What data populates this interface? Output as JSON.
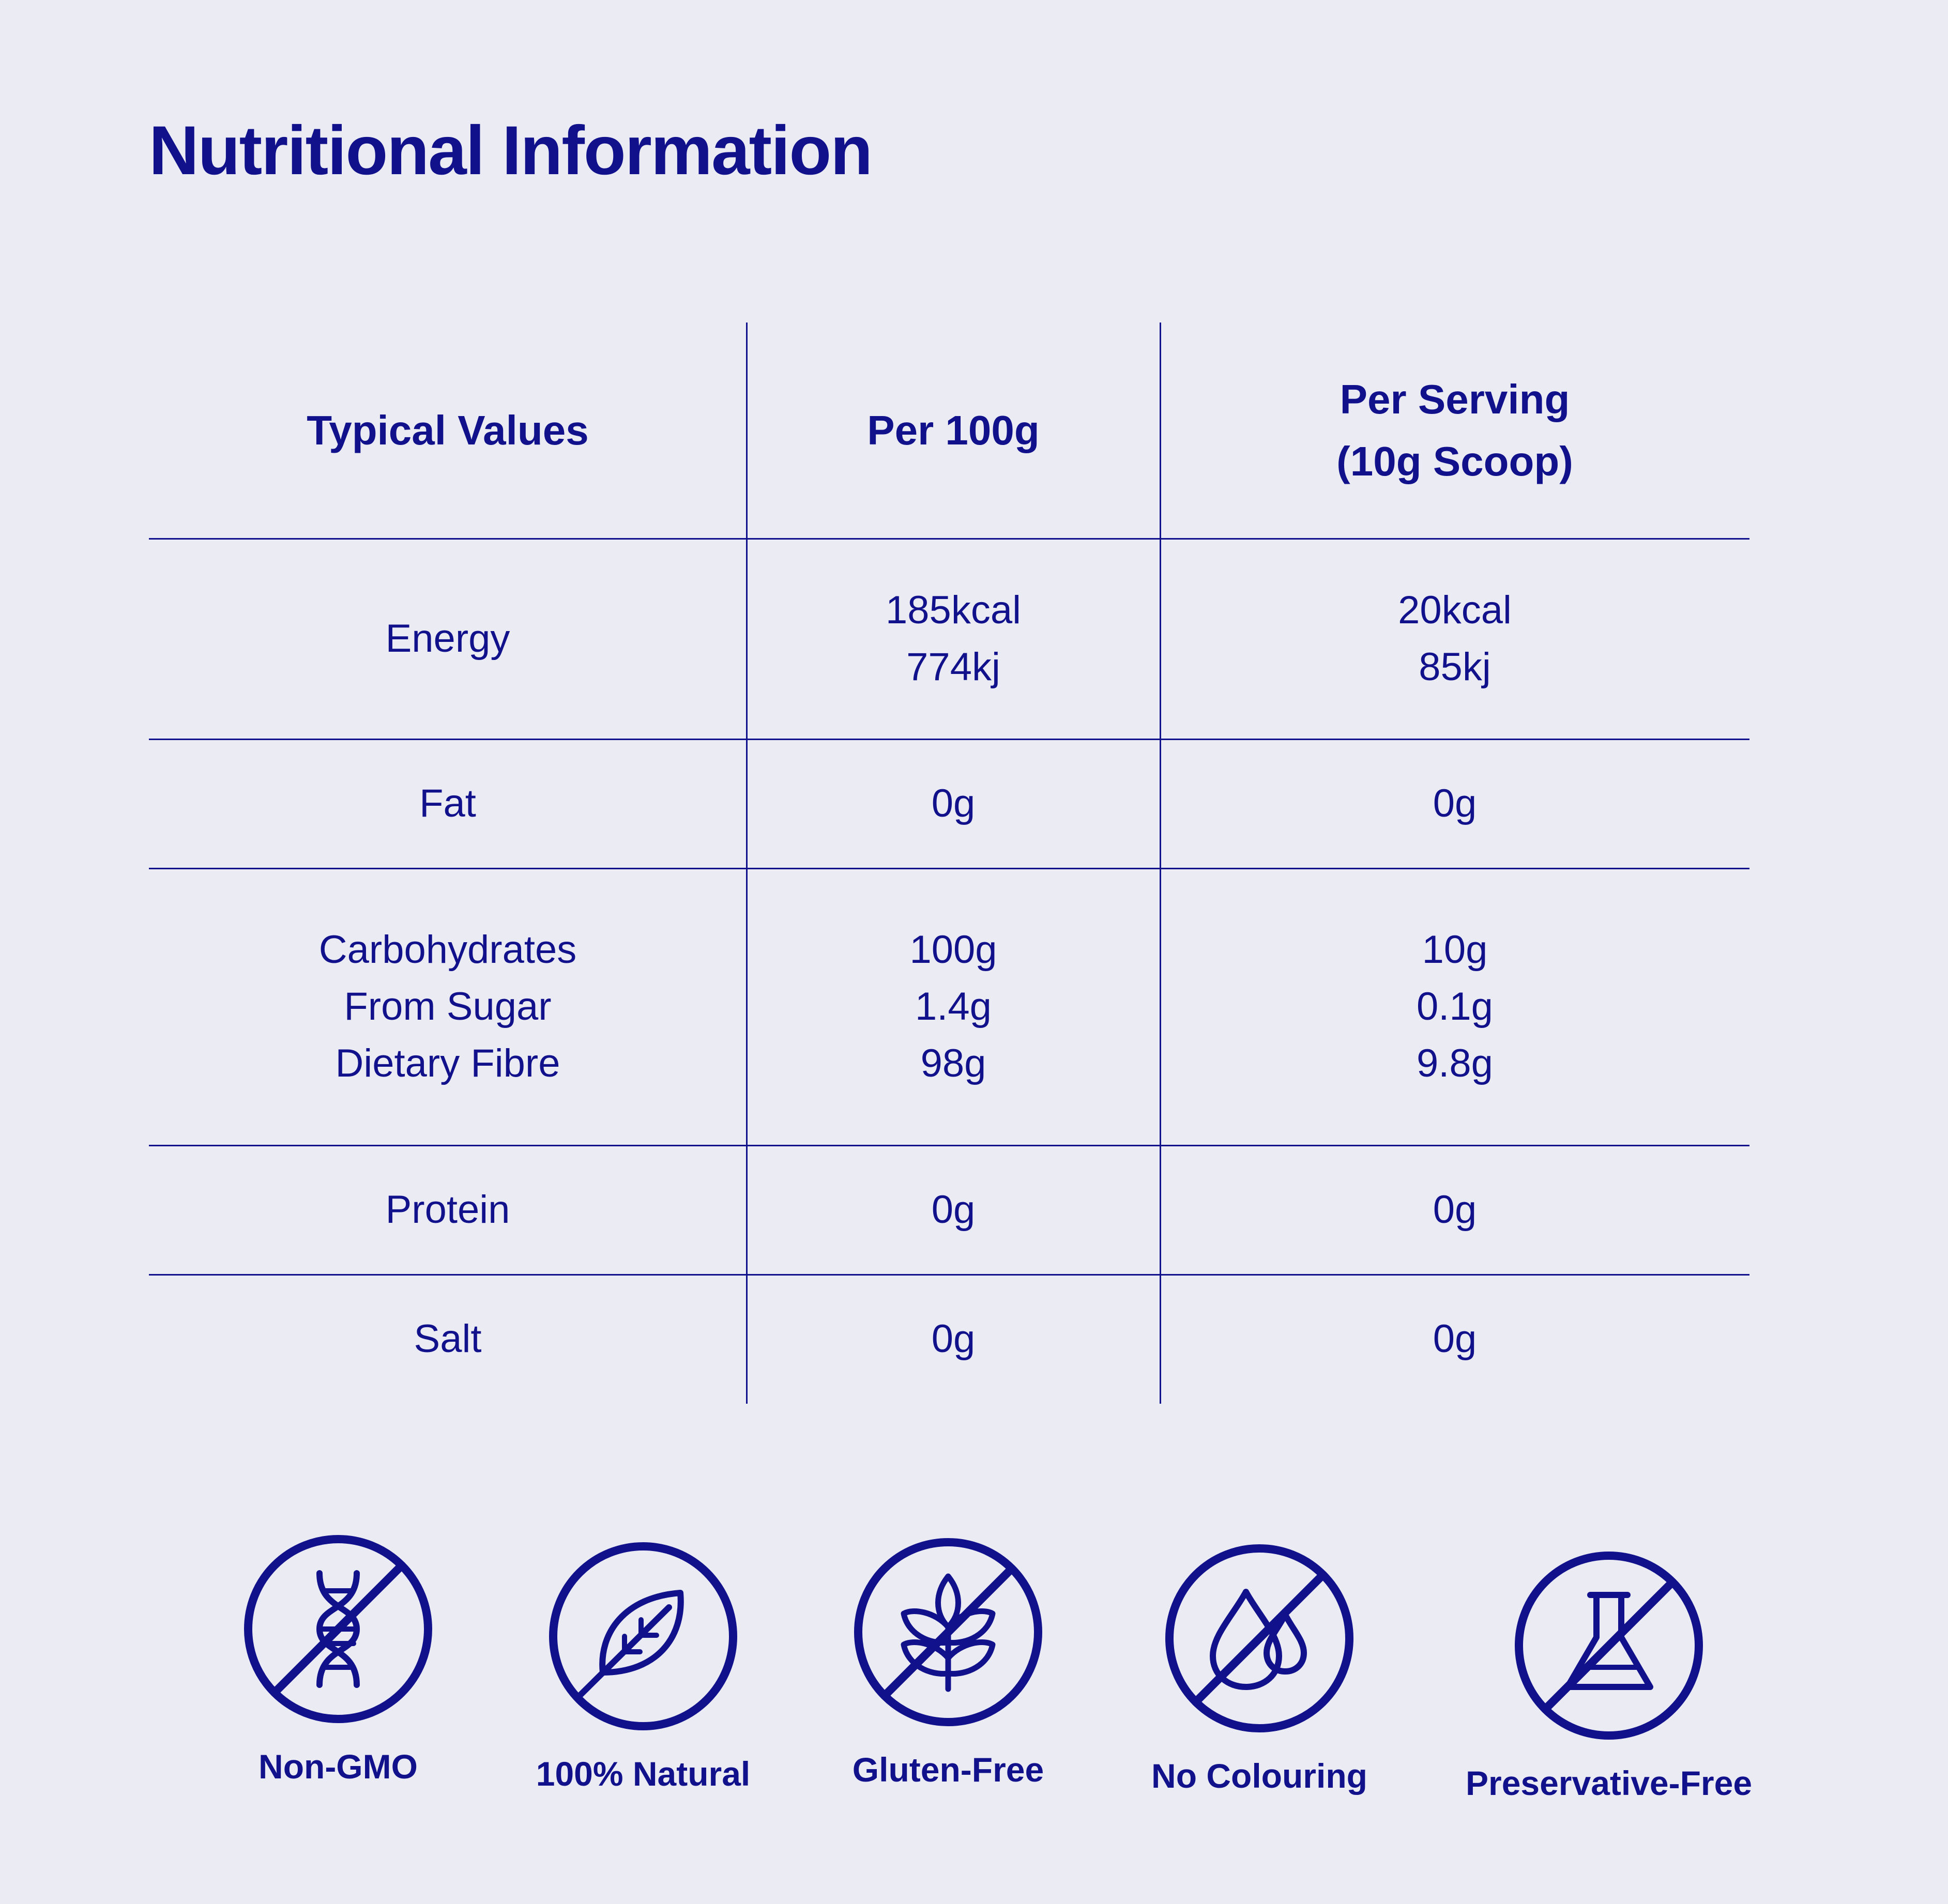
{
  "title": "Nutritional Information",
  "colors": {
    "primary": "#11118c",
    "background": "#ebebf4"
  },
  "table": {
    "headers": [
      [
        "Typical Values"
      ],
      [
        "Per 100g"
      ],
      [
        "Per Serving",
        "(10g Scoop)"
      ]
    ],
    "rows": [
      {
        "label": [
          "Energy"
        ],
        "per100g": [
          "185kcal",
          "774kj"
        ],
        "perServing": [
          "20kcal",
          "85kj"
        ]
      },
      {
        "label": [
          "Fat"
        ],
        "per100g": [
          "0g"
        ],
        "perServing": [
          "0g"
        ]
      },
      {
        "label": [
          "Carbohydrates",
          "From Sugar",
          "Dietary Fibre"
        ],
        "per100g": [
          "100g",
          "1.4g",
          "98g"
        ],
        "perServing": [
          "10g",
          "0.1g",
          "9.8g"
        ]
      },
      {
        "label": [
          "Protein"
        ],
        "per100g": [
          "0g"
        ],
        "perServing": [
          "0g"
        ]
      },
      {
        "label": [
          "Salt"
        ],
        "per100g": [
          "0g"
        ],
        "perServing": [
          "0g"
        ]
      }
    ]
  },
  "badges": [
    {
      "label": "Non-GMO",
      "icon": "dna-crossed-icon"
    },
    {
      "label": "100% Natural",
      "icon": "leaf-icon"
    },
    {
      "label": "Gluten-Free",
      "icon": "wheat-crossed-icon"
    },
    {
      "label": "No Colouring",
      "icon": "drops-crossed-icon"
    },
    {
      "label": "Preservative-Free",
      "icon": "flask-crossed-icon"
    }
  ]
}
